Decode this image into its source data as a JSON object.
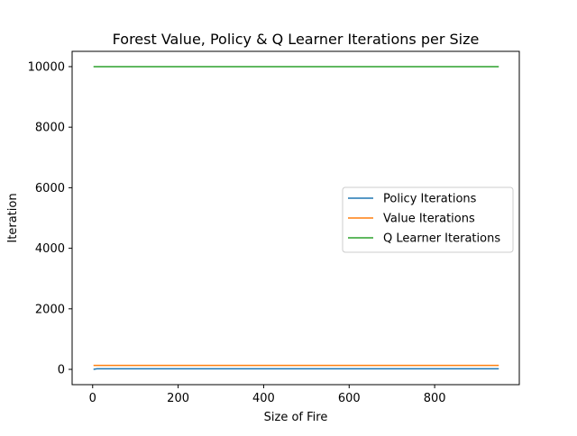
{
  "chart_data": {
    "type": "line",
    "title": "Forest Value, Policy & Q Learner Iterations per Size",
    "xlabel": "Size of Fire",
    "ylabel": "Iteration",
    "xlim": [
      -48,
      998
    ],
    "ylim": [
      -505,
      10505
    ],
    "xticks": [
      0,
      200,
      400,
      600,
      800
    ],
    "yticks": [
      0,
      2000,
      4000,
      6000,
      8000,
      10000
    ],
    "x": [
      2,
      10,
      20,
      50,
      100,
      200,
      300,
      400,
      500,
      600,
      700,
      800,
      900,
      950
    ],
    "series": [
      {
        "name": "Policy Iterations",
        "color": "#1f77b4",
        "values": [
          2,
          20,
          20,
          20,
          20,
          20,
          20,
          20,
          20,
          20,
          20,
          20,
          20,
          20
        ]
      },
      {
        "name": "Value Iterations",
        "color": "#ff7f0e",
        "values": [
          130,
          130,
          130,
          130,
          130,
          130,
          130,
          130,
          130,
          130,
          130,
          130,
          130,
          130
        ]
      },
      {
        "name": "Q Learner Iterations",
        "color": "#2ca02c",
        "values": [
          10000,
          10000,
          10000,
          10000,
          10000,
          10000,
          10000,
          10000,
          10000,
          10000,
          10000,
          10000,
          10000,
          10000
        ]
      }
    ],
    "legend_position": "center-right",
    "grid": false
  }
}
